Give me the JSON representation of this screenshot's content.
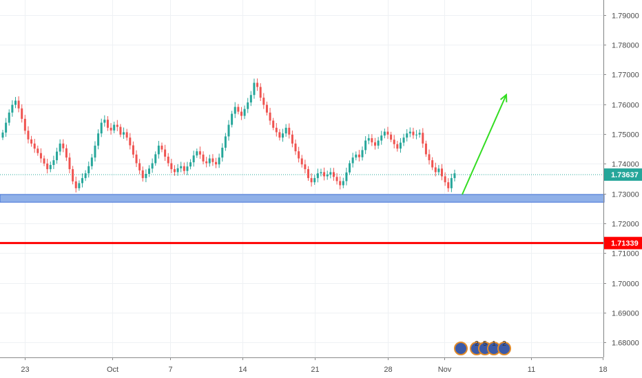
{
  "chart_data": {
    "type": "candlestick",
    "y_range": [
      1.675,
      1.795
    ],
    "y_ticks": [
      "1.79000",
      "1.78000",
      "1.77000",
      "1.76000",
      "1.75000",
      "1.74000",
      "1.73000",
      "1.72000",
      "1.71000",
      "1.70000",
      "1.69000",
      "1.68000"
    ],
    "x_tick_labels": [
      "23",
      "Oct",
      "7",
      "14",
      "21",
      "28",
      "Nov",
      "11",
      "18"
    ],
    "grid": true,
    "colors": {
      "up": "#26a69a",
      "down": "#ef5350",
      "support_zone": "#8fb0e8",
      "support_zone_border": "#3f6fd8",
      "level_line": "#ff0000",
      "arrow": "#33dd22",
      "current_price": "#26a69a"
    },
    "current_price": {
      "value": 1.73637,
      "label": "1.73637"
    },
    "level_line": {
      "value": 1.71339,
      "label": "1.71339"
    },
    "support_zone": {
      "low": 1.7271,
      "high": 1.7297
    },
    "projection_arrow": {
      "from_price": 1.7297,
      "to_price": 1.7632
    },
    "candles_close": [
      1.7505,
      1.7538,
      1.7572,
      1.7598,
      1.7612,
      1.7586,
      1.7551,
      1.7511,
      1.7482,
      1.7468,
      1.7451,
      1.7436,
      1.7418,
      1.7401,
      1.7382,
      1.7396,
      1.7412,
      1.7441,
      1.7468,
      1.7452,
      1.7421,
      1.7382,
      1.7341,
      1.7318,
      1.7335,
      1.7352,
      1.7368,
      1.7392,
      1.7421,
      1.7461,
      1.7502,
      1.7538,
      1.7548,
      1.7521,
      1.7512,
      1.7531,
      1.7524,
      1.7498,
      1.7506,
      1.7488,
      1.7462,
      1.7431,
      1.7402,
      1.7378,
      1.7352,
      1.7366,
      1.7384,
      1.7402,
      1.7432,
      1.7461,
      1.7448,
      1.7424,
      1.7402,
      1.7382,
      1.7372,
      1.7385,
      1.7392,
      1.7376,
      1.7391,
      1.7405,
      1.7428,
      1.7442,
      1.7431,
      1.7408,
      1.7402,
      1.7418,
      1.7406,
      1.7398,
      1.7421,
      1.7454,
      1.7492,
      1.7531,
      1.7568,
      1.7591,
      1.7575,
      1.7561,
      1.7584,
      1.7606,
      1.7631,
      1.7672,
      1.7658,
      1.7622,
      1.7598,
      1.7572,
      1.7545,
      1.7521,
      1.7506,
      1.7488,
      1.7502,
      1.7521,
      1.7498,
      1.7468,
      1.7442,
      1.7418,
      1.7398,
      1.7382,
      1.7352,
      1.7338,
      1.7352,
      1.7368,
      1.7372,
      1.7358,
      1.7364,
      1.7372,
      1.7356,
      1.7342,
      1.7328,
      1.7342,
      1.7371,
      1.7402,
      1.7421,
      1.7431,
      1.7422,
      1.7446,
      1.7478,
      1.7486,
      1.7472,
      1.7461,
      1.7478,
      1.7495,
      1.7508,
      1.7498,
      1.7481,
      1.7466,
      1.7451,
      1.7471,
      1.7488,
      1.7502,
      1.7508,
      1.7496,
      1.7498,
      1.7504,
      1.7468,
      1.7432,
      1.7412,
      1.7388,
      1.7372,
      1.7384,
      1.7358,
      1.7338,
      1.7318,
      1.7352,
      1.7368
    ]
  },
  "watermark": {
    "digits": [
      "2",
      "5",
      "1",
      "2"
    ]
  }
}
